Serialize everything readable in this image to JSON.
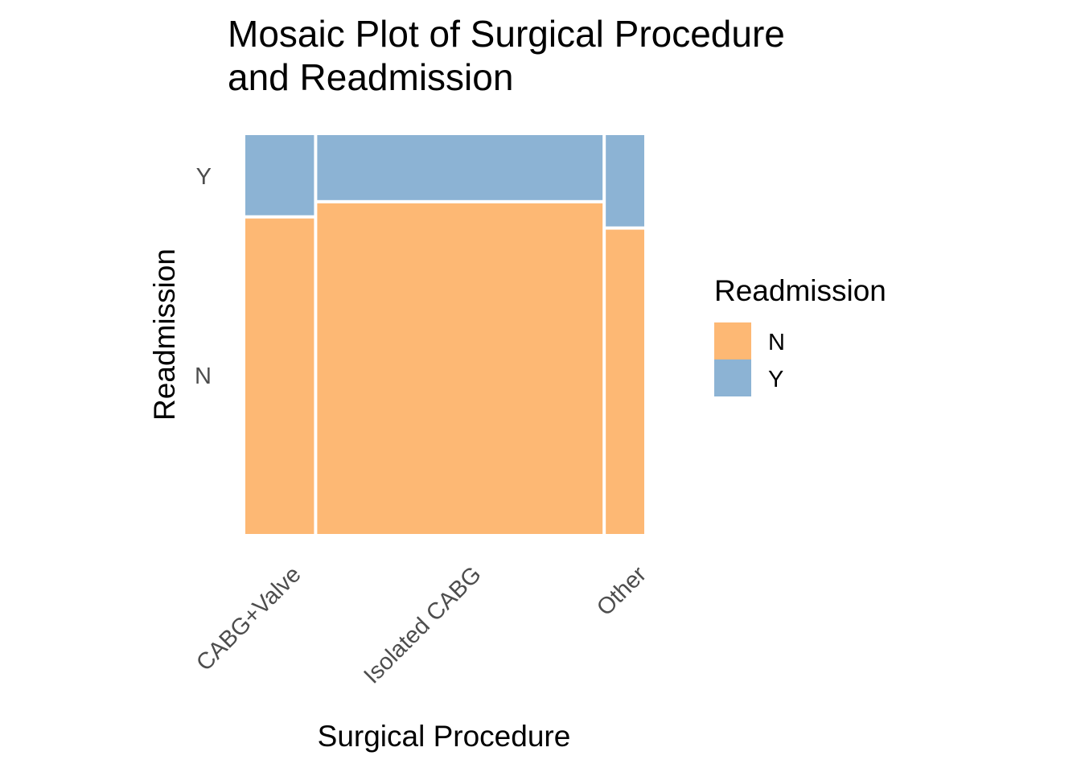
{
  "chart_data": {
    "type": "mosaic",
    "title": "Mosaic Plot of Surgical Procedure and Readmission",
    "title_lines": [
      "Mosaic Plot of Surgical Procedure",
      "and Readmission"
    ],
    "xlabel": "Surgical Procedure",
    "ylabel": "Readmission",
    "categories": [
      "CABG+Valve",
      "Isolated CABG",
      "Other"
    ],
    "category_share": [
      0.175,
      0.727,
      0.098
    ],
    "y_tick_labels": [
      "N",
      "Y"
    ],
    "series": [
      {
        "name": "N",
        "color": "#FDB874",
        "values": [
          0.795,
          0.833,
          0.767
        ]
      },
      {
        "name": "Y",
        "color": "#8CB3D4",
        "values": [
          0.205,
          0.167,
          0.233
        ]
      }
    ],
    "legend": {
      "title": "Readmission",
      "position": "right",
      "items": [
        "N",
        "Y"
      ]
    },
    "grid": false
  }
}
